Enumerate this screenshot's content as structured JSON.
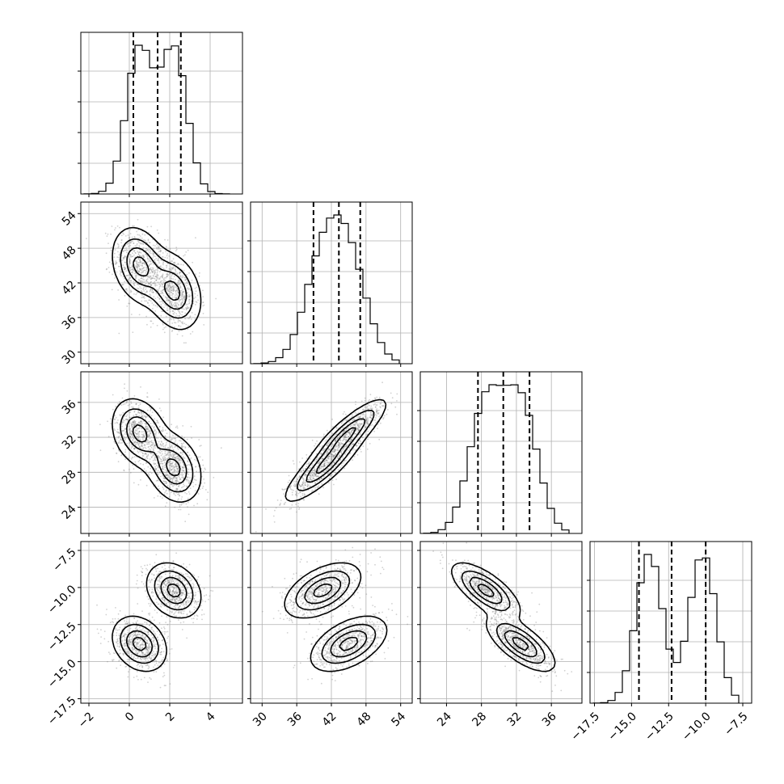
{
  "chart_data": {
    "type": "corner",
    "parameters": [
      {
        "range": [
          -2.4,
          5.6
        ],
        "ticks": [
          -2,
          0,
          2,
          4
        ],
        "tick_labels": [
          "−2",
          "0",
          "2",
          "4"
        ],
        "mixture": [
          {
            "w": 0.5,
            "mu": 0.5,
            "sd": 0.65
          },
          {
            "w": 0.5,
            "mu": 2.2,
            "sd": 0.65
          }
        ]
      },
      {
        "range": [
          28.0,
          56.0
        ],
        "ticks": [
          30,
          36,
          42,
          48,
          54
        ],
        "tick_labels": [
          "30",
          "36",
          "42",
          "48",
          "54"
        ],
        "mixture": [
          {
            "w": 0.5,
            "mu": 45.0,
            "sd": 3.2
          },
          {
            "w": 0.5,
            "mu": 40.5,
            "sd": 3.2
          }
        ]
      },
      {
        "range": [
          21.0,
          39.5
        ],
        "ticks": [
          24,
          28,
          32,
          36
        ],
        "tick_labels": [
          "24",
          "28",
          "32",
          "36"
        ],
        "mixture": [
          {
            "w": 0.5,
            "mu": 32.5,
            "sd": 1.9
          },
          {
            "w": 0.5,
            "mu": 28.5,
            "sd": 1.9
          }
        ]
      },
      {
        "range": [
          -17.8,
          -6.9
        ],
        "ticks": [
          -17.5,
          -15.0,
          -12.5,
          -10.0,
          -7.5
        ],
        "tick_labels": [
          "−17.5",
          "−15.0",
          "−12.5",
          "−10.0",
          "−7.5"
        ],
        "mixture": [
          {
            "w": 0.5,
            "mu": -13.8,
            "sd": 0.9
          },
          {
            "w": 0.5,
            "mu": -10.2,
            "sd": 0.9
          }
        ]
      }
    ],
    "quantiles": [
      [
        0.2,
        1.4,
        2.55
      ],
      [
        38.9,
        43.3,
        47.0
      ],
      [
        27.6,
        30.5,
        33.5
      ],
      [
        -14.5,
        -12.3,
        -10.0
      ]
    ],
    "modes": [
      {
        "weight": 0.5,
        "center": [
          0.5,
          45.0,
          32.5,
          -13.8
        ]
      },
      {
        "weight": 0.5,
        "center": [
          2.2,
          40.5,
          28.5,
          -10.2
        ]
      }
    ],
    "histogram_bins": 20,
    "grid": true,
    "xlabels": [
      "",
      "",
      "",
      ""
    ],
    "ylabels": [
      "",
      "",
      "",
      ""
    ]
  }
}
